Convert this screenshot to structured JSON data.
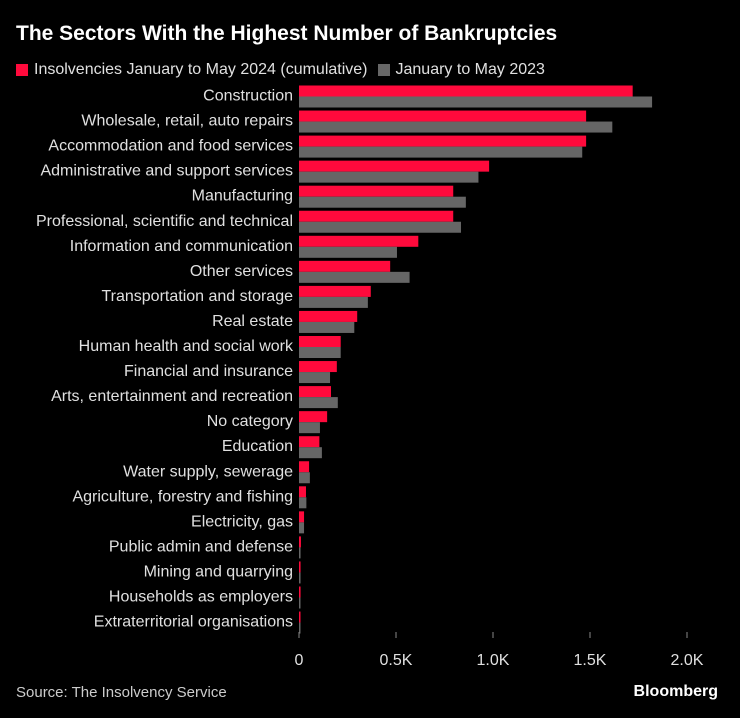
{
  "chart_data": {
    "type": "bar",
    "orientation": "horizontal",
    "title": "The Sectors With the Highest Number of Bankruptcies",
    "categories": [
      "Construction",
      "Wholesale, retail, auto repairs",
      "Accommodation and food services",
      "Administrative and support services",
      "Manufacturing",
      "Professional, scientific and technical",
      "Information and communication",
      "Other services",
      "Transportation and storage",
      "Real estate",
      "Human health and social work",
      "Financial and insurance",
      "Arts, entertainment and recreation",
      "No category",
      "Education",
      "Water supply, sewerage",
      "Agriculture, forestry and fishing",
      "Electricity, gas",
      "Public admin and defense",
      "Mining and quarrying",
      "Households as employers",
      "Extraterritorial organisations"
    ],
    "series": [
      {
        "name": "Insolvencies January to May 2024 (cumulative)",
        "color": "#ff0a3c",
        "values": [
          1720,
          1480,
          1480,
          980,
          795,
          795,
          615,
          470,
          370,
          300,
          215,
          195,
          165,
          145,
          105,
          52,
          36,
          26,
          10,
          8,
          8,
          6
        ]
      },
      {
        "name": "January to May 2023",
        "color": "#666666",
        "values": [
          1820,
          1615,
          1460,
          925,
          860,
          835,
          505,
          570,
          355,
          285,
          215,
          160,
          200,
          108,
          118,
          56,
          38,
          26,
          8,
          8,
          6,
          5
        ]
      }
    ],
    "xlim": [
      0,
      2000
    ],
    "xticks": [
      0,
      500,
      1000,
      1500,
      2000
    ],
    "xtick_labels": [
      "0",
      "0.5K",
      "1.0K",
      "1.5K",
      "2.0K"
    ],
    "grid": false,
    "legend_position": "top-left"
  },
  "source": "Source: The Insolvency Service",
  "brand": "Bloomberg"
}
